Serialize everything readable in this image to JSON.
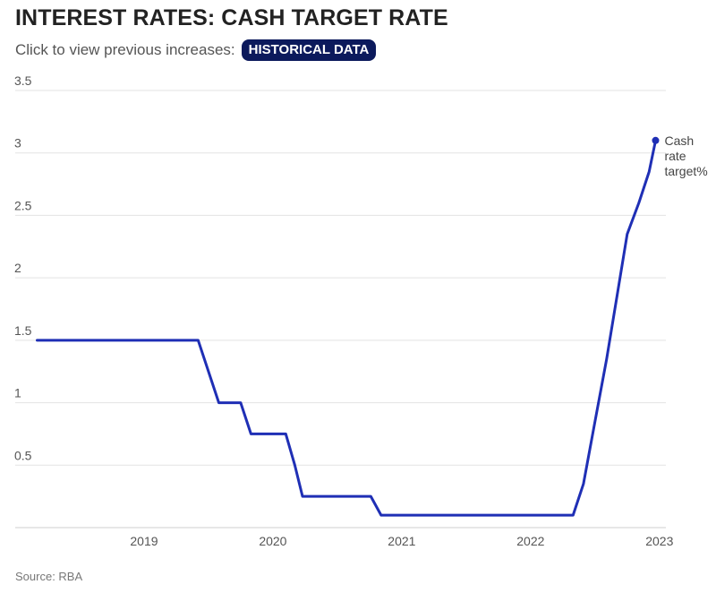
{
  "header": {
    "title": "INTEREST RATES: CASH TARGET RATE",
    "subtitle": "Click to view previous increases:",
    "button_label": "HISTORICAL DATA"
  },
  "footer": {
    "source": "Source: RBA"
  },
  "colors": {
    "line": "#1f2fb5",
    "button_bg": "#0c1a5c",
    "grid": "#e3e3e3"
  },
  "chart_data": {
    "type": "line",
    "title": "INTEREST RATES: CASH TARGET RATE",
    "xlabel": "",
    "ylabel": "",
    "xlim": [
      2018.0,
      2023.05
    ],
    "ylim": [
      0,
      3.5
    ],
    "yticks": [
      "0.5",
      "1",
      "1.5",
      "2",
      "2.5",
      "3",
      "3.5"
    ],
    "xticks": [
      "2019",
      "2020",
      "2021",
      "2022",
      "2023"
    ],
    "grid": true,
    "series": [
      {
        "name": "Cash rate target%",
        "x": [
          2018.17,
          2019.42,
          2019.58,
          2019.75,
          2019.83,
          2020.1,
          2020.17,
          2020.23,
          2020.76,
          2020.84,
          2022.33,
          2022.41,
          2022.5,
          2022.59,
          2022.67,
          2022.75,
          2022.84,
          2022.92,
          2022.97
        ],
        "y": [
          1.5,
          1.5,
          1.0,
          1.0,
          0.75,
          0.75,
          0.5,
          0.25,
          0.25,
          0.1,
          0.1,
          0.35,
          0.85,
          1.35,
          1.85,
          2.35,
          2.6,
          2.85,
          3.1
        ]
      }
    ],
    "annotation": "Cash rate target%"
  }
}
